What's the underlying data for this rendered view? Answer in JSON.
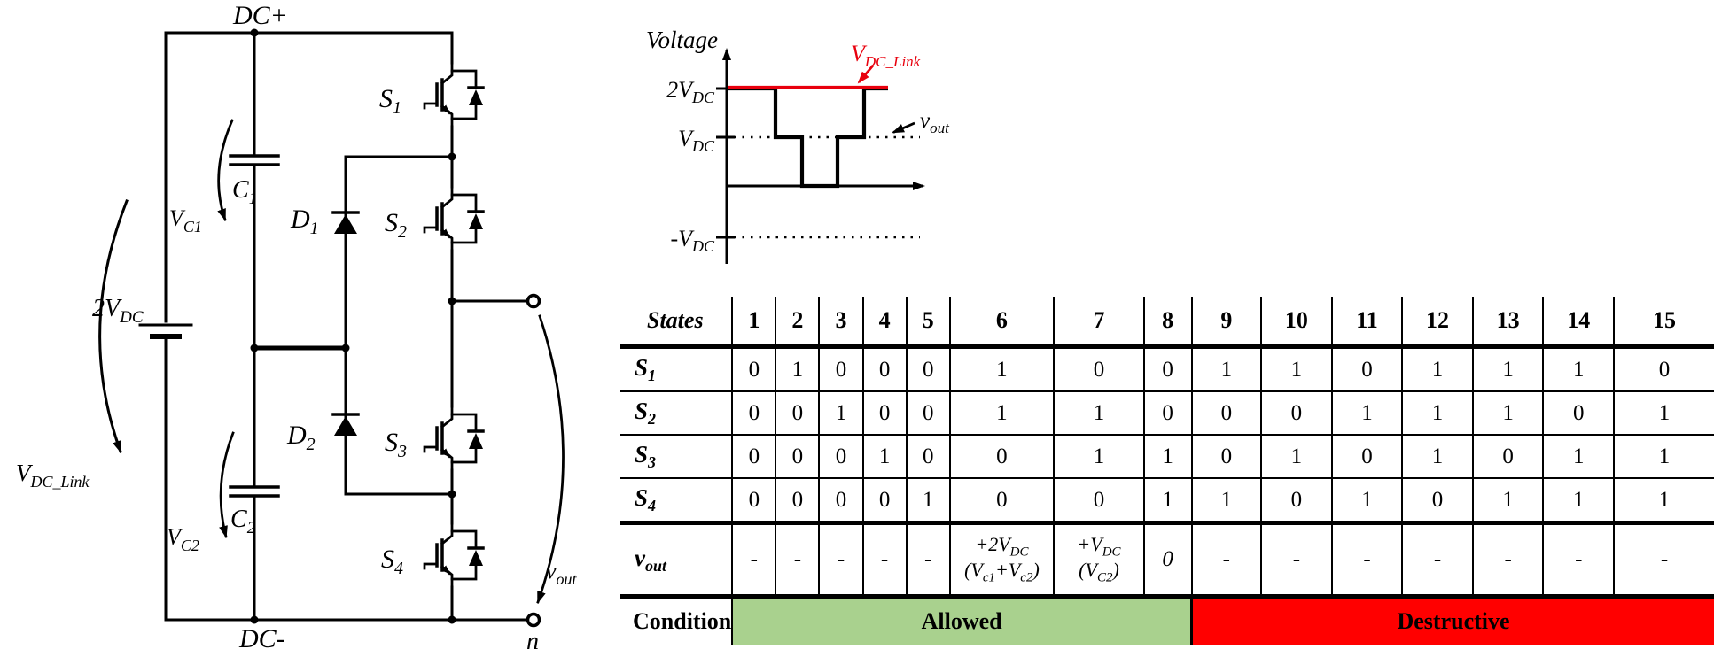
{
  "circuit": {
    "dc_plus": "DC+",
    "dc_minus": "DC-",
    "source": {
      "base": "2V",
      "sub": "DC"
    },
    "c1": {
      "base": "C",
      "sub": "1"
    },
    "c2": {
      "base": "C",
      "sub": "2"
    },
    "vc1": {
      "base": "V",
      "sub": "C1"
    },
    "vc2": {
      "base": "V",
      "sub": "C2"
    },
    "vdc_link": {
      "base": "V",
      "sub": "DC_Link"
    },
    "d1": {
      "base": "D",
      "sub": "1"
    },
    "d2": {
      "base": "D",
      "sub": "2"
    },
    "s1": {
      "base": "S",
      "sub": "1"
    },
    "s2": {
      "base": "S",
      "sub": "2"
    },
    "s3": {
      "base": "S",
      "sub": "3"
    },
    "s4": {
      "base": "S",
      "sub": "4"
    },
    "vout": {
      "base": "v",
      "sub": "out"
    },
    "neutral": "n"
  },
  "waveform": {
    "ylabel": "Voltage",
    "level_2vdc": {
      "base": "2V",
      "sub": "DC"
    },
    "level_vdc": {
      "base": "V",
      "sub": "DC"
    },
    "level_neg_vdc": {
      "base": "-V",
      "sub": "DC"
    },
    "vdc_link": {
      "base": "V",
      "sub": "DC_Link"
    },
    "vout": {
      "base": "v",
      "sub": "out"
    },
    "accent_color": "#e8000d",
    "trace_levels": [
      "2VDC",
      "VDC",
      "0",
      "VDC",
      "2VDC"
    ]
  },
  "table": {
    "corner": "States",
    "state_numbers": [
      "1",
      "2",
      "3",
      "4",
      "5",
      "6",
      "7",
      "8",
      "9",
      "10",
      "11",
      "12",
      "13",
      "14",
      "15"
    ],
    "switch_rows": [
      {
        "base": "S",
        "sub": "1",
        "values": [
          "0",
          "1",
          "0",
          "0",
          "0",
          "1",
          "0",
          "0",
          "1",
          "1",
          "0",
          "1",
          "1",
          "1",
          "0"
        ]
      },
      {
        "base": "S",
        "sub": "2",
        "values": [
          "0",
          "0",
          "1",
          "0",
          "0",
          "1",
          "1",
          "0",
          "0",
          "0",
          "1",
          "1",
          "1",
          "0",
          "1"
        ]
      },
      {
        "base": "S",
        "sub": "3",
        "values": [
          "0",
          "0",
          "0",
          "1",
          "0",
          "0",
          "1",
          "1",
          "0",
          "1",
          "0",
          "1",
          "0",
          "1",
          "1"
        ]
      },
      {
        "base": "S",
        "sub": "4",
        "values": [
          "0",
          "0",
          "0",
          "0",
          "1",
          "0",
          "0",
          "1",
          "1",
          "0",
          "1",
          "0",
          "1",
          "1",
          "1"
        ]
      }
    ],
    "vout_row": {
      "base": "v",
      "sub": "out",
      "values": [
        "-",
        "-",
        "-",
        "-",
        "-",
        null,
        null,
        "0",
        "-",
        "-",
        "-",
        "-",
        "-",
        "-",
        "-"
      ],
      "cell6": {
        "p1": "+2V",
        "p1s": "DC",
        "p2": "(V",
        "p2s": "c1",
        "p3": "+V",
        "p3s": "c2",
        "p4": ")"
      },
      "cell7": {
        "p1": "+V",
        "p1s": "DC",
        "p2": "(V",
        "p2s": "C2",
        "p4": ")"
      }
    },
    "condition": {
      "label": "Condition",
      "allowed": "Allowed",
      "destructive": "Destructive",
      "allowed_color": "#a9d18e",
      "destructive_color": "#ff0000"
    }
  }
}
